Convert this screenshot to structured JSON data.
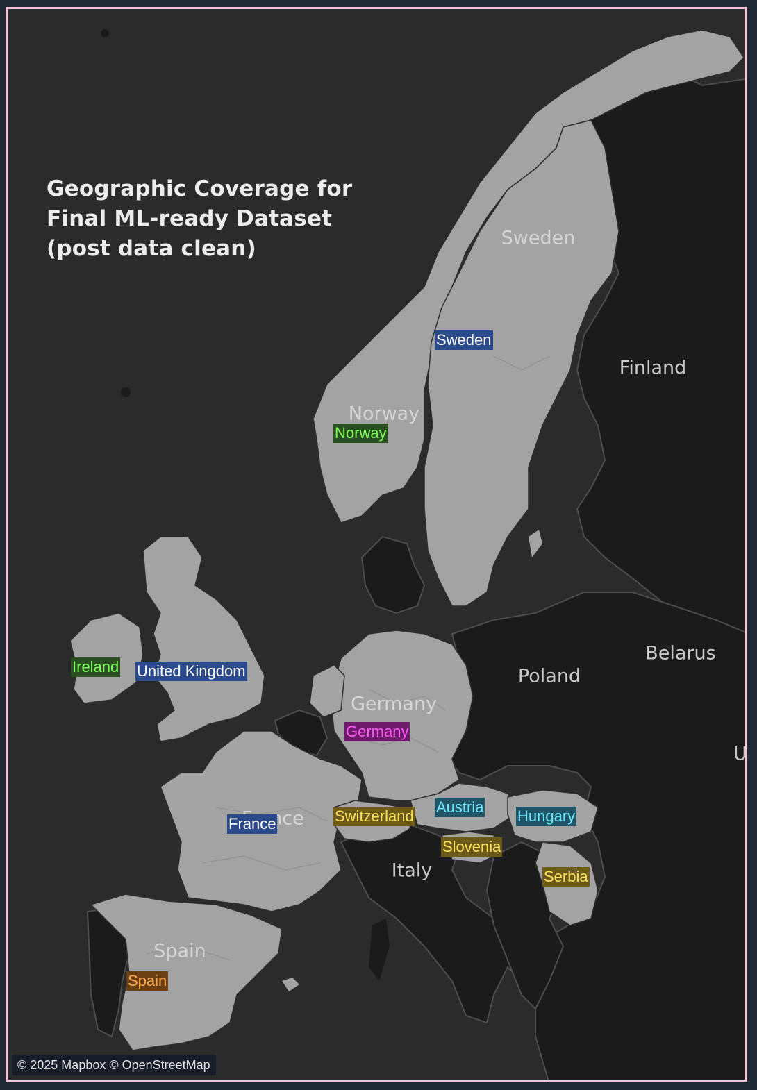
{
  "map": {
    "title_lines": [
      "Geographic Coverage for",
      "Final ML-ready Dataset",
      "(post data clean)"
    ],
    "basemap_labels": [
      "Sweden",
      "Finland",
      "Norway",
      "Belarus",
      "Poland",
      "Germany",
      "Ukra",
      "France",
      "Italy",
      "Spain"
    ],
    "country_tags": [
      {
        "text": "Sweden",
        "bg": "#2b4a8b",
        "fg": "#ffffff"
      },
      {
        "text": "Norway",
        "bg": "#2a4e22",
        "fg": "#7dff5a"
      },
      {
        "text": "Ireland",
        "bg": "#2a4e22",
        "fg": "#7dff5a"
      },
      {
        "text": "United Kingdom",
        "bg": "#2b4a8b",
        "fg": "#ffffff"
      },
      {
        "text": "Germany",
        "bg": "#6e1a6b",
        "fg": "#ff5cf5"
      },
      {
        "text": "Switzerland",
        "bg": "#6b5a1a",
        "fg": "#ffe45c"
      },
      {
        "text": "Austria",
        "bg": "#1f5566",
        "fg": "#6fe8ff"
      },
      {
        "text": "Hungary",
        "bg": "#1f5566",
        "fg": "#6fe8ff"
      },
      {
        "text": "France",
        "bg": "#2b4a8b",
        "fg": "#ffffff"
      },
      {
        "text": "Slovenia",
        "bg": "#6b5a1a",
        "fg": "#ffe45c"
      },
      {
        "text": "Serbia",
        "bg": "#6b5a1a",
        "fg": "#ffe45c"
      },
      {
        "text": "Spain",
        "bg": "#6b3f14",
        "fg": "#ffa94d"
      }
    ],
    "attribution": "© 2025 Mapbox © OpenStreetMap",
    "colors": {
      "ocean": "#2b2b2b",
      "highlighted_country": "#a3a3a3",
      "other_land": "#1a1a1a",
      "border": "#5a5a5a",
      "frame": "#f2c6d8"
    }
  }
}
